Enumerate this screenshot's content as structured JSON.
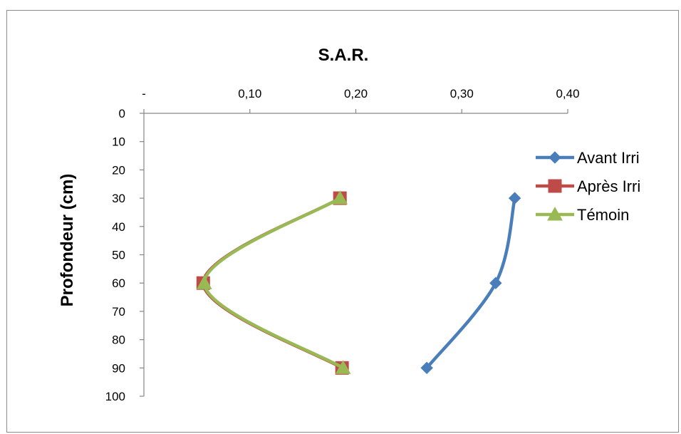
{
  "chart_data": {
    "type": "line",
    "title": "S.A.R.",
    "xlabel": "",
    "ylabel": "Profondeur  (cm)",
    "x_ticks": [
      "-",
      "0,10",
      "0,20",
      "0,30",
      "0,40"
    ],
    "x_tick_values": [
      0,
      0.1,
      0.2,
      0.3,
      0.4
    ],
    "y_ticks": [
      "0",
      "10",
      "20",
      "30",
      "40",
      "50",
      "60",
      "70",
      "80",
      "90",
      "100"
    ],
    "y_tick_values": [
      0,
      10,
      20,
      30,
      40,
      50,
      60,
      70,
      80,
      90,
      100
    ],
    "xlim": [
      0,
      0.4
    ],
    "ylim": [
      0,
      100
    ],
    "y_inverted": true,
    "x_axis_position": "top",
    "legend_position": "right",
    "smoothed": true,
    "series": [
      {
        "name": "Avant Irri",
        "color": "#4a7ebb",
        "marker": "diamond",
        "points": [
          {
            "x": 0.35,
            "y": 30
          },
          {
            "x": 0.332,
            "y": 60
          },
          {
            "x": 0.267,
            "y": 90
          }
        ]
      },
      {
        "name": "Après Irri",
        "color": "#be4b48",
        "marker": "square",
        "points": [
          {
            "x": 0.185,
            "y": 30
          },
          {
            "x": 0.056,
            "y": 60
          },
          {
            "x": 0.187,
            "y": 90
          }
        ]
      },
      {
        "name": "Témoin",
        "color": "#98b954",
        "marker": "triangle",
        "points": [
          {
            "x": 0.185,
            "y": 30
          },
          {
            "x": 0.057,
            "y": 60
          },
          {
            "x": 0.188,
            "y": 90
          }
        ]
      }
    ]
  }
}
